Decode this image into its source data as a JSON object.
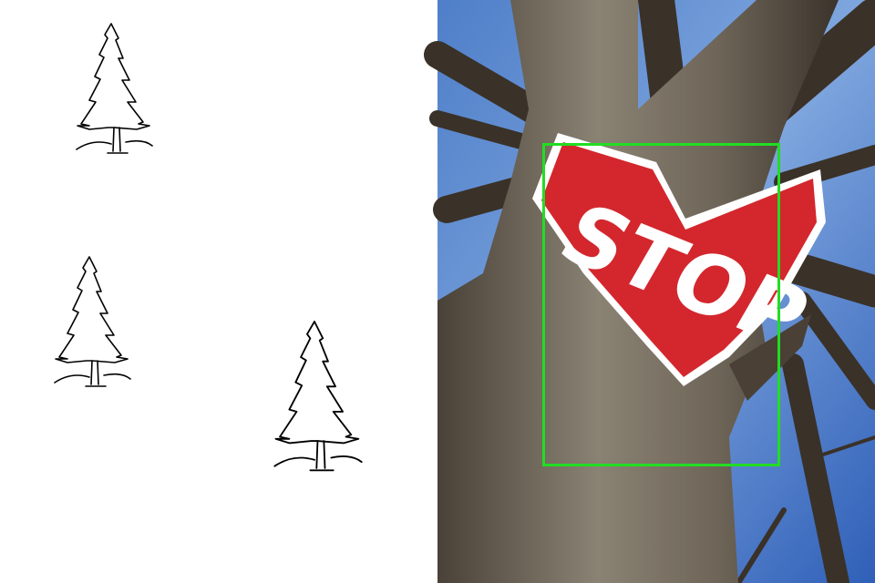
{
  "image": {
    "sign_text": "STOP"
  }
}
